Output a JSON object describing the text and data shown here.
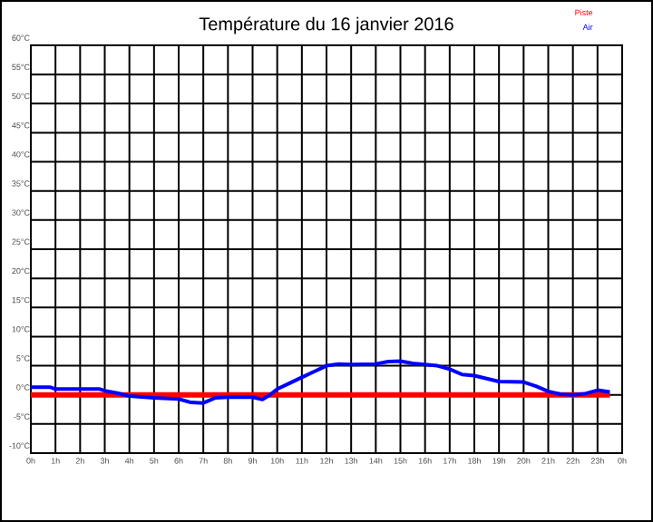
{
  "chart_data": {
    "type": "line",
    "title": "Température du 16 janvier 2016",
    "legend": "top right",
    "grid": true,
    "line_style": "solid",
    "xlim": [
      "2016-01-16T00:00",
      "2016-01-17T00:00"
    ],
    "ylim": [
      -10,
      60
    ],
    "xticks": [
      {
        "value": "2016-01-16T00:00",
        "label": "0h"
      },
      {
        "value": "2016-01-16T01:00",
        "label": "1h"
      },
      {
        "value": "2016-01-16T02:00",
        "label": "2h"
      },
      {
        "value": "2016-01-16T03:00",
        "label": "3h"
      },
      {
        "value": "2016-01-16T04:00",
        "label": "4h"
      },
      {
        "value": "2016-01-16T05:00",
        "label": "5h"
      },
      {
        "value": "2016-01-16T06:00",
        "label": "6h"
      },
      {
        "value": "2016-01-16T07:00",
        "label": "7h"
      },
      {
        "value": "2016-01-16T08:00",
        "label": "8h"
      },
      {
        "value": "2016-01-16T09:00",
        "label": "9h"
      },
      {
        "value": "2016-01-16T10:00",
        "label": "10h"
      },
      {
        "value": "2016-01-16T11:00",
        "label": "11h"
      },
      {
        "value": "2016-01-16T12:00",
        "label": "12h"
      },
      {
        "value": "2016-01-16T13:00",
        "label": "13h"
      },
      {
        "value": "2016-01-16T14:00",
        "label": "14h"
      },
      {
        "value": "2016-01-16T15:00",
        "label": "15h"
      },
      {
        "value": "2016-01-16T16:00",
        "label": "16h"
      },
      {
        "value": "2016-01-16T17:00",
        "label": "17h"
      },
      {
        "value": "2016-01-16T18:00",
        "label": "18h"
      },
      {
        "value": "2016-01-16T19:00",
        "label": "19h"
      },
      {
        "value": "2016-01-16T20:00",
        "label": "20h"
      },
      {
        "value": "2016-01-16T21:00",
        "label": "21h"
      },
      {
        "value": "2016-01-16T22:00",
        "label": "22h"
      },
      {
        "value": "2016-01-16T23:00",
        "label": "23h"
      },
      {
        "value": "2016-01-17T00:00",
        "label": "0h"
      }
    ],
    "yticks": [
      {
        "value": -10,
        "label": "-10°C"
      },
      {
        "value": -5,
        "label": "-5°C"
      },
      {
        "value": 0,
        "label": "0°C"
      },
      {
        "value": 5,
        "label": "5°C"
      },
      {
        "value": 10,
        "label": "10°C"
      },
      {
        "value": 15,
        "label": "15°C"
      },
      {
        "value": 20,
        "label": "20°C"
      },
      {
        "value": 25,
        "label": "25°C"
      },
      {
        "value": 30,
        "label": "30°C"
      },
      {
        "value": 35,
        "label": "35°C"
      },
      {
        "value": 40,
        "label": "40°C"
      },
      {
        "value": 45,
        "label": "45°C"
      },
      {
        "value": 50,
        "label": "50°C"
      },
      {
        "value": 55,
        "label": "55°C"
      },
      {
        "value": 60,
        "label": "60°C"
      }
    ],
    "series": [
      {
        "name": "Piste",
        "color": "#ff0000",
        "x": [
          "2016-01-16T00:00",
          "2016-01-16T23:30"
        ],
        "values": [
          0,
          0
        ]
      },
      {
        "name": "Air",
        "color": "#0000ff",
        "x": [
          "2016-01-16T00:00",
          "2016-01-16T00:48",
          "2016-01-16T01:00",
          "2016-01-16T02:48",
          "2016-01-16T03:00",
          "2016-01-16T03:30",
          "2016-01-16T04:00",
          "2016-01-16T05:00",
          "2016-01-16T06:00",
          "2016-01-16T06:30",
          "2016-01-16T07:00",
          "2016-01-16T07:30",
          "2016-01-16T08:00",
          "2016-01-16T09:00",
          "2016-01-16T09:24",
          "2016-01-16T09:42",
          "2016-01-16T10:00",
          "2016-01-16T10:30",
          "2016-01-16T11:00",
          "2016-01-16T11:30",
          "2016-01-16T12:00",
          "2016-01-16T12:30",
          "2016-01-16T13:00",
          "2016-01-16T14:00",
          "2016-01-16T14:30",
          "2016-01-16T15:00",
          "2016-01-16T15:30",
          "2016-01-16T16:00",
          "2016-01-16T16:30",
          "2016-01-16T17:00",
          "2016-01-16T17:30",
          "2016-01-16T18:00",
          "2016-01-16T18:30",
          "2016-01-16T19:00",
          "2016-01-16T20:00",
          "2016-01-16T20:30",
          "2016-01-16T21:00",
          "2016-01-16T21:30",
          "2016-01-16T22:00",
          "2016-01-16T22:30",
          "2016-01-16T23:00",
          "2016-01-16T23:30"
        ],
        "values": [
          1.3,
          1.3,
          1,
          1,
          0.7,
          0.3,
          -0.2,
          -0.5,
          -0.7,
          -1.3,
          -1.4,
          -0.5,
          -0.4,
          -0.4,
          -0.8,
          0,
          1,
          2,
          3,
          4,
          5,
          5.3,
          5.2,
          5.3,
          5.7,
          5.8,
          5.4,
          5.2,
          5,
          4.4,
          3.5,
          3.3,
          2.8,
          2.3,
          2.2,
          1.5,
          0.6,
          0.1,
          0,
          0.2,
          0.8,
          0.5
        ]
      }
    ]
  }
}
